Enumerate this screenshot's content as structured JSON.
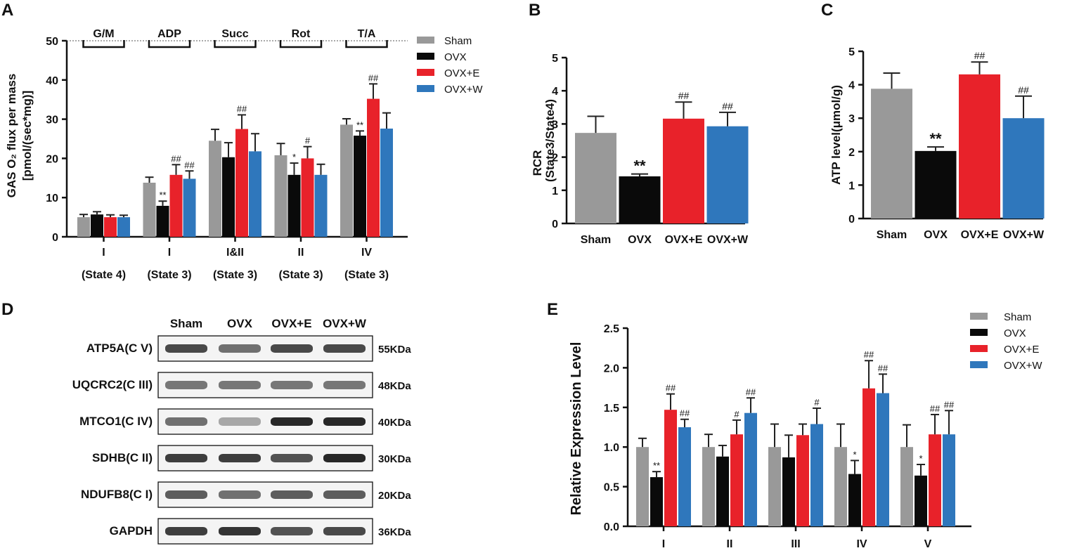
{
  "colors": {
    "Sham": "#999999",
    "OVX": "#0a0a0a",
    "OVX+E": "#e8222a",
    "OVX+W": "#2f77bc"
  },
  "chart_data": [
    {
      "panel": "A",
      "type": "bar",
      "ylabel": "GAS O₂ flux per mass",
      "ylabel2": "[pmol/(sec*mg)]",
      "ylim": [
        0,
        50
      ],
      "yticks": [
        0,
        10,
        20,
        30,
        40,
        50
      ],
      "reference_line": 50,
      "protocol_steps": [
        "G/M",
        "ADP",
        "Succ",
        "Rot",
        "T/A"
      ],
      "categories": [
        {
          "line1": "I",
          "line2": "(State 4)"
        },
        {
          "line1": "I",
          "line2": "(State 3)"
        },
        {
          "line1": "I&II",
          "line2": "(State 3)"
        },
        {
          "line1": "II",
          "line2": "(State 3)"
        },
        {
          "line1": "IV",
          "line2": "(State 3)"
        }
      ],
      "legend": [
        "Sham",
        "OVX",
        "OVX+E",
        "OVX+W"
      ],
      "series": [
        {
          "name": "Sham",
          "values": [
            5,
            13.8,
            24.5,
            20.8,
            28.6
          ],
          "errors": [
            0.7,
            1.4,
            2.9,
            3.0,
            1.5
          ],
          "sig": [
            "",
            "",
            "",
            "",
            ""
          ]
        },
        {
          "name": "OVX",
          "values": [
            5.7,
            7.9,
            20.3,
            15.8,
            25.8
          ],
          "errors": [
            0.7,
            1.2,
            3.7,
            3.0,
            1.2
          ],
          "sig": [
            "",
            "**",
            "",
            "*",
            "**"
          ]
        },
        {
          "name": "OVX+E",
          "values": [
            5,
            15.8,
            27.5,
            20,
            35.2
          ],
          "errors": [
            0.6,
            2.6,
            3.6,
            3.0,
            3.8
          ],
          "sig": [
            "",
            "##",
            "##",
            "#",
            "##"
          ]
        },
        {
          "name": "OVX+W",
          "values": [
            5,
            14.8,
            21.8,
            15.8,
            27.6
          ],
          "errors": [
            0.5,
            2.0,
            4.5,
            2.7,
            4.0
          ],
          "sig": [
            "",
            "##",
            "",
            "",
            ""
          ]
        }
      ]
    },
    {
      "panel": "B",
      "type": "bar",
      "ylabel": "RCR",
      "ylabel2": "(State3/State4)",
      "ylim": [
        0,
        5
      ],
      "yticks": [
        0,
        1,
        2,
        3,
        4,
        5
      ],
      "categories": [
        "Sham",
        "OVX",
        "OVX+E",
        "OVX+W"
      ],
      "values": [
        2.73,
        1.42,
        3.16,
        2.93
      ],
      "errors": [
        0.5,
        0.07,
        0.5,
        0.42
      ],
      "sig": [
        "",
        "**",
        "##",
        "##"
      ]
    },
    {
      "panel": "C",
      "type": "bar",
      "ylabel": "ATP level(μmol/g)",
      "ylim": [
        0,
        5
      ],
      "yticks": [
        0,
        1,
        2,
        3,
        4,
        5
      ],
      "categories": [
        "Sham",
        "OVX",
        "OVX+E",
        "OVX+W"
      ],
      "values": [
        3.88,
        2.02,
        4.31,
        3.0
      ],
      "errors": [
        0.47,
        0.12,
        0.37,
        0.66
      ],
      "sig": [
        "",
        "**",
        "##",
        "##"
      ]
    },
    {
      "panel": "E",
      "type": "bar",
      "ylabel": "Relative Expression Level",
      "ylim": [
        0,
        2.5
      ],
      "yticks": [
        "0.0",
        "0.5",
        "1.0",
        "1.5",
        "2.0",
        "2.5"
      ],
      "categories": [
        "I",
        "II",
        "III",
        "IV",
        "V"
      ],
      "legend": [
        "Sham",
        "OVX",
        "OVX+E",
        "OVX+W"
      ],
      "series": [
        {
          "name": "Sham",
          "values": [
            1.0,
            1.0,
            1.0,
            1.0,
            1.0
          ],
          "errors": [
            0.11,
            0.16,
            0.29,
            0.29,
            0.28
          ],
          "sig": [
            "",
            "",
            "",
            "",
            ""
          ]
        },
        {
          "name": "OVX",
          "values": [
            0.62,
            0.88,
            0.87,
            0.66,
            0.64
          ],
          "errors": [
            0.07,
            0.14,
            0.28,
            0.17,
            0.14
          ],
          "sig": [
            "**",
            "",
            "",
            "*",
            "*"
          ]
        },
        {
          "name": "OVX+E",
          "values": [
            1.47,
            1.16,
            1.15,
            1.74,
            1.16
          ],
          "errors": [
            0.2,
            0.18,
            0.14,
            0.35,
            0.25
          ],
          "sig": [
            "##",
            "#",
            "",
            "##",
            "##"
          ]
        },
        {
          "name": "OVX+W",
          "values": [
            1.25,
            1.43,
            1.29,
            1.68,
            1.16
          ],
          "errors": [
            0.1,
            0.19,
            0.2,
            0.24,
            0.3
          ],
          "sig": [
            "##",
            "##",
            "#",
            "##",
            "##"
          ]
        }
      ]
    }
  ],
  "western_blot": {
    "panel": "D",
    "groups": [
      "Sham",
      "OVX",
      "OVX+E",
      "OVX+W"
    ],
    "rows": [
      {
        "label": "ATP5A(C V)",
        "size": "55KDa",
        "intensity": [
          0.85,
          0.65,
          0.85,
          0.85
        ]
      },
      {
        "label": "UQCRC2(C III)",
        "size": "48KDa",
        "intensity": [
          0.6,
          0.6,
          0.6,
          0.6
        ]
      },
      {
        "label": "MTCO1(C IV)",
        "size": "40KDa",
        "intensity": [
          0.65,
          0.3,
          1.0,
          1.0
        ]
      },
      {
        "label": "SDHB(C II)",
        "size": "30KDa",
        "intensity": [
          0.9,
          0.9,
          0.8,
          1.0
        ]
      },
      {
        "label": "NDUFB8(C I)",
        "size": "20KDa",
        "intensity": [
          0.75,
          0.65,
          0.75,
          0.75
        ]
      },
      {
        "label": "GAPDH",
        "size": "36KDa",
        "intensity": [
          0.9,
          0.95,
          0.8,
          0.85
        ]
      }
    ]
  }
}
